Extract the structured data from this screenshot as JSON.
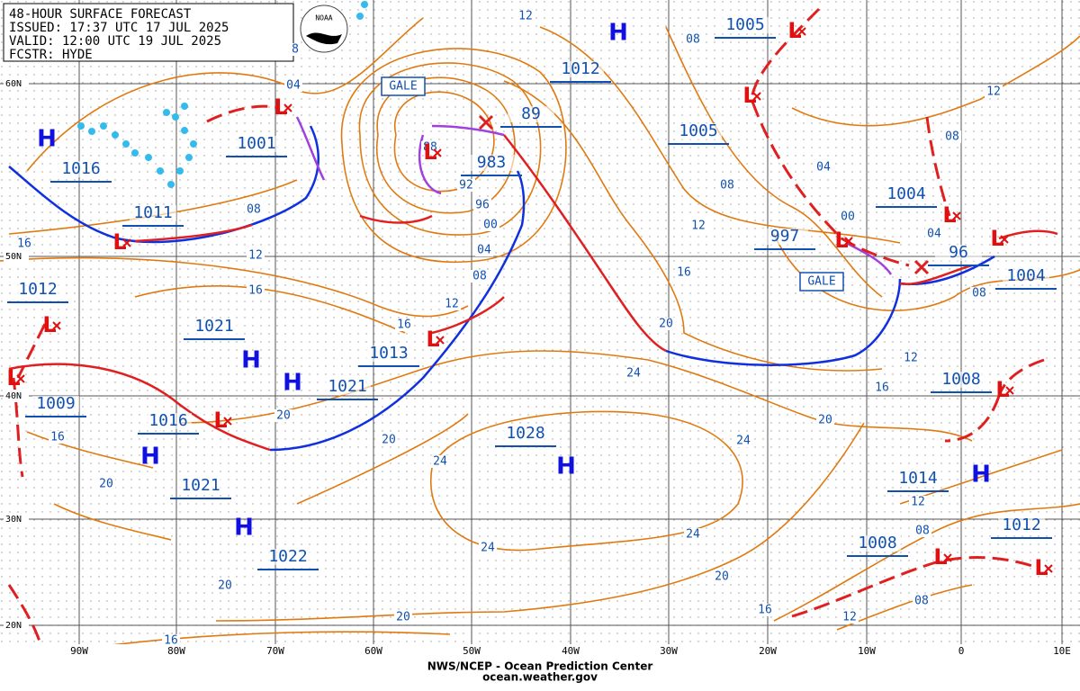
{
  "header": {
    "lines": [
      "48-HOUR SURFACE FORECAST",
      "ISSUED: 17:37 UTC 17 JUL 2025",
      "VALID: 12:00 UTC 19 JUL 2025",
      "FCSTR: HYDE"
    ],
    "logo": "NOAA"
  },
  "latitude_labels": [
    "60N",
    "50N",
    "40N",
    "30N",
    "20N"
  ],
  "longitude_labels": [
    "90W",
    "80W",
    "70W",
    "60W",
    "50W",
    "40W",
    "30W",
    "20W",
    "10W",
    "0",
    "10E"
  ],
  "pressure_labels": [
    "1016",
    "1011",
    "1001",
    "1021",
    "1012",
    "1009",
    "1016",
    "1013",
    "1021",
    "1021",
    "1022",
    "983",
    "89",
    "1012",
    "1005",
    "1005",
    "997",
    "1004",
    "96",
    "1004",
    "1008",
    "1028",
    "1014",
    "1008",
    "1012"
  ],
  "isobar_labels": [
    "12",
    "08",
    "04",
    "08",
    "12",
    "16",
    "16",
    "88",
    "92",
    "96",
    "00",
    "04",
    "08",
    "12",
    "16",
    "20",
    "16",
    "12",
    "08",
    "04",
    "00",
    "04",
    "08",
    "12",
    "08",
    "12",
    "16",
    "20",
    "24",
    "24",
    "20",
    "24",
    "20",
    "16",
    "20",
    "24",
    "24",
    "20",
    "16",
    "12",
    "08",
    "08",
    "12",
    "20",
    "20",
    "16",
    "8"
  ],
  "highs": [
    "H",
    "H",
    "H",
    "H",
    "H",
    "H",
    "H",
    "H"
  ],
  "lows": [
    "L",
    "L",
    "L",
    "L",
    "L",
    "L",
    "L",
    "L",
    "L",
    "L",
    "L",
    "L",
    "L",
    "L",
    "L"
  ],
  "gale_labels": [
    "GALE",
    "GALE"
  ],
  "footer": [
    "NWS/NCEP - Ocean Prediction Center",
    "ocean.weather.gov"
  ]
}
